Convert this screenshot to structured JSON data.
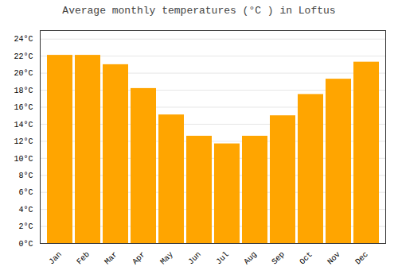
{
  "chart_data": {
    "type": "bar",
    "title": "Average monthly temperatures (°C ) in Loftus",
    "categories": [
      "Jan",
      "Feb",
      "Mar",
      "Apr",
      "May",
      "Jun",
      "Jul",
      "Aug",
      "Sep",
      "Oct",
      "Nov",
      "Dec"
    ],
    "values": [
      22.1,
      22.1,
      21.0,
      18.2,
      15.1,
      12.6,
      11.7,
      12.6,
      15.0,
      17.5,
      19.3,
      21.3
    ],
    "color": "#FFA500",
    "ylim": [
      0,
      25
    ],
    "yticks": [
      {
        "value": 0,
        "label": "0°C"
      },
      {
        "value": 2,
        "label": "2°C"
      },
      {
        "value": 4,
        "label": "4°C"
      },
      {
        "value": 6,
        "label": "6°C"
      },
      {
        "value": 8,
        "label": "8°C"
      },
      {
        "value": 10,
        "label": "10°C"
      },
      {
        "value": 12,
        "label": "12°C"
      },
      {
        "value": 14,
        "label": "14°C"
      },
      {
        "value": 16,
        "label": "16°C"
      },
      {
        "value": 18,
        "label": "18°C"
      },
      {
        "value": 20,
        "label": "20°C"
      },
      {
        "value": 22,
        "label": "22°C"
      },
      {
        "value": 24,
        "label": "24°C"
      }
    ],
    "grid": true
  }
}
